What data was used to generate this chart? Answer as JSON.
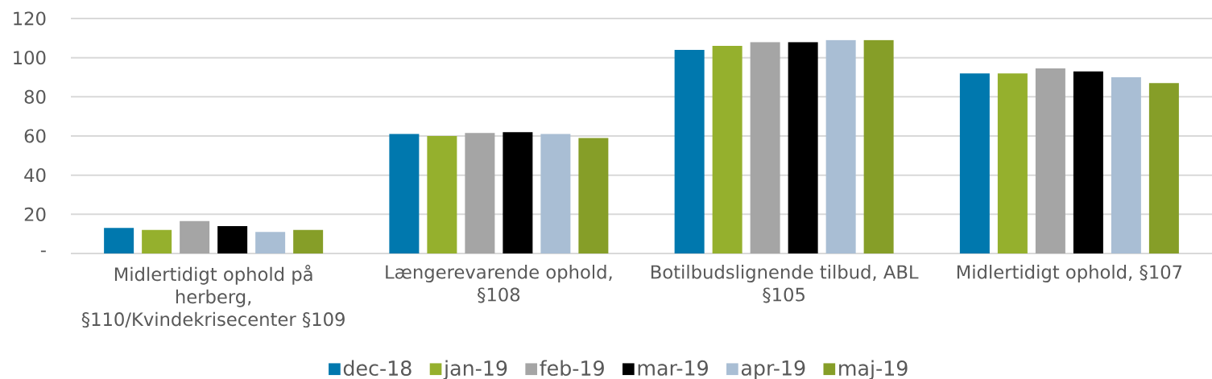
{
  "chart_data": {
    "type": "bar",
    "categories": [
      "Midlertidigt ophold på herberg, §110/Kvindekrisecenter §109",
      "Længerevarende ophold, §108",
      "Botilbudslignende tilbud, ABL §105",
      "Midlertidigt ophold, §107"
    ],
    "series": [
      {
        "name": "dec-18",
        "color": "#0078ae",
        "values": [
          13,
          61,
          104,
          92
        ]
      },
      {
        "name": "jan-19",
        "color": "#95b02d",
        "values": [
          12,
          60,
          106,
          92
        ]
      },
      {
        "name": "feb-19",
        "color": "#a5a5a5",
        "values": [
          16.5,
          61.5,
          108,
          94.5
        ]
      },
      {
        "name": "mar-19",
        "color": "#000000",
        "values": [
          14,
          62,
          108,
          93
        ]
      },
      {
        "name": "apr-19",
        "color": "#a9bed4",
        "values": [
          11,
          61,
          109,
          90
        ]
      },
      {
        "name": "maj-19",
        "color": "#869e28",
        "values": [
          12,
          59,
          109,
          87
        ]
      }
    ],
    "ylim": [
      0,
      120
    ],
    "yticks": [
      {
        "value": 0,
        "label": "-"
      },
      20,
      40,
      60,
      80,
      100,
      120
    ],
    "grid": "y",
    "legend": "bottom"
  }
}
